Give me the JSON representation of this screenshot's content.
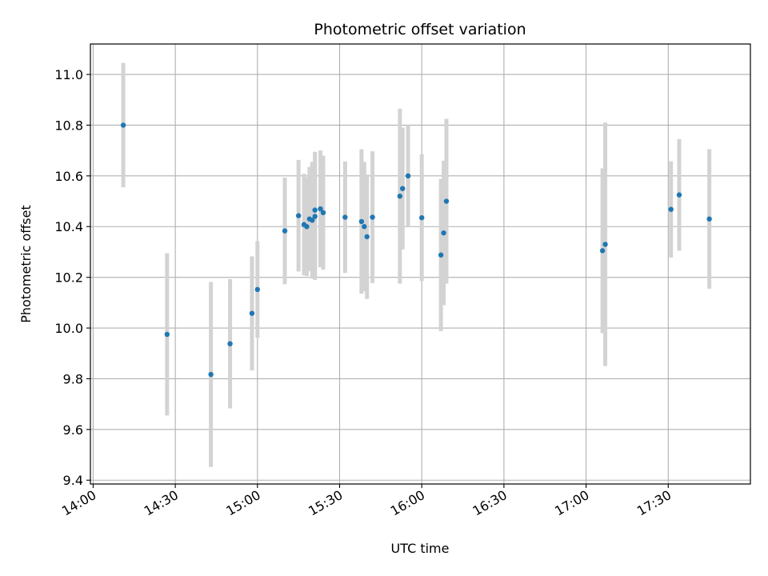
{
  "chart_data": {
    "type": "scatter",
    "title": "Photometric offset variation",
    "xlabel": "UTC time",
    "ylabel": "Photometric offset",
    "x_unit": "time",
    "x_range": [
      "13:59",
      "18:00"
    ],
    "ylim": [
      9.385,
      11.12
    ],
    "x_ticks": [
      "14:00",
      "14:30",
      "15:00",
      "15:30",
      "16:00",
      "16:30",
      "17:00",
      "17:30"
    ],
    "y_ticks": [
      "9.4",
      "9.6",
      "9.8",
      "10.0",
      "10.2",
      "10.4",
      "10.6",
      "10.8",
      "11.0"
    ],
    "grid": true,
    "marker_color": "#1f77b4",
    "errorbar_color": "#d3d3d3",
    "points": [
      {
        "x": "14:11",
        "y": 10.8,
        "err": 0.245
      },
      {
        "x": "14:27",
        "y": 9.975,
        "err": 0.32
      },
      {
        "x": "14:43",
        "y": 9.817,
        "err": 0.365
      },
      {
        "x": "14:50",
        "y": 9.938,
        "err": 0.255
      },
      {
        "x": "14:58",
        "y": 10.058,
        "err": 0.225
      },
      {
        "x": "15:00",
        "y": 10.152,
        "err": 0.19
      },
      {
        "x": "15:10",
        "y": 10.383,
        "err": 0.21
      },
      {
        "x": "15:15",
        "y": 10.443,
        "err": 0.22
      },
      {
        "x": "15:17",
        "y": 10.408,
        "err": 0.2
      },
      {
        "x": "15:18",
        "y": 10.4,
        "err": 0.195
      },
      {
        "x": "15:19",
        "y": 10.43,
        "err": 0.205
      },
      {
        "x": "15:20",
        "y": 10.425,
        "err": 0.23
      },
      {
        "x": "15:21",
        "y": 10.44,
        "err": 0.25
      },
      {
        "x": "15:21",
        "y": 10.465,
        "err": 0.23
      },
      {
        "x": "15:23",
        "y": 10.47,
        "err": 0.23
      },
      {
        "x": "15:24",
        "y": 10.455,
        "err": 0.225
      },
      {
        "x": "15:32",
        "y": 10.437,
        "err": 0.22
      },
      {
        "x": "15:38",
        "y": 10.42,
        "err": 0.285
      },
      {
        "x": "15:39",
        "y": 10.4,
        "err": 0.255
      },
      {
        "x": "15:40",
        "y": 10.36,
        "err": 0.245
      },
      {
        "x": "15:42",
        "y": 10.437,
        "err": 0.26
      },
      {
        "x": "15:52",
        "y": 10.52,
        "err": 0.345
      },
      {
        "x": "15:53",
        "y": 10.55,
        "err": 0.24
      },
      {
        "x": "15:55",
        "y": 10.6,
        "err": 0.2
      },
      {
        "x": "16:00",
        "y": 10.435,
        "err": 0.25
      },
      {
        "x": "16:07",
        "y": 10.288,
        "err": 0.3
      },
      {
        "x": "16:08",
        "y": 10.375,
        "err": 0.285
      },
      {
        "x": "16:09",
        "y": 10.5,
        "err": 0.325
      },
      {
        "x": "17:06",
        "y": 10.305,
        "err": 0.325
      },
      {
        "x": "17:07",
        "y": 10.33,
        "err": 0.48
      },
      {
        "x": "17:31",
        "y": 10.468,
        "err": 0.19
      },
      {
        "x": "17:34",
        "y": 10.525,
        "err": 0.22
      },
      {
        "x": "17:45",
        "y": 10.43,
        "err": 0.275
      }
    ]
  }
}
